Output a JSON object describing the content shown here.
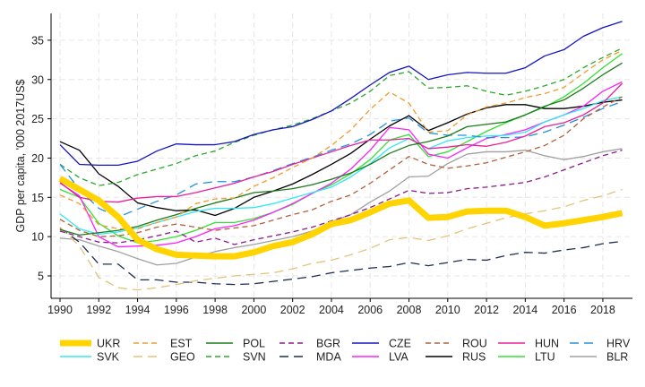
{
  "chart_data": {
    "type": "line",
    "title": "",
    "xlabel": "",
    "ylabel": "GDP per capita, '000 2017US$",
    "xlim": [
      1989.9,
      2019.3
    ],
    "ylim": [
      2.15,
      38.4
    ],
    "x_ticks": [
      1990,
      1992,
      1994,
      1996,
      1998,
      2000,
      2002,
      2004,
      2006,
      2008,
      2010,
      2012,
      2014,
      2016,
      2018
    ],
    "y_ticks": [
      5,
      10,
      15,
      20,
      25,
      30,
      35
    ],
    "grid": true,
    "legend_position": "bottom",
    "x": [
      1990,
      1991,
      1992,
      1993,
      1994,
      1995,
      1996,
      1997,
      1998,
      1999,
      2000,
      2001,
      2002,
      2003,
      2004,
      2005,
      2006,
      2007,
      2008,
      2009,
      2010,
      2011,
      2012,
      2013,
      2014,
      2015,
      2016,
      2017,
      2018,
      2019
    ],
    "series": [
      {
        "name": "UKR",
        "color": "#ffd400",
        "style": "thick",
        "values": [
          17.4,
          16.0,
          14.6,
          12.5,
          9.6,
          8.4,
          7.7,
          7.6,
          7.5,
          7.5,
          8.0,
          8.8,
          9.3,
          10.3,
          11.6,
          12.1,
          13.1,
          14.2,
          14.6,
          12.4,
          12.5,
          13.2,
          13.3,
          13.3,
          12.5,
          11.4,
          11.7,
          12.1,
          12.5,
          13.0
        ]
      },
      {
        "name": "EST",
        "color": "#f39a2c",
        "style": "dash",
        "values": [
          15.3,
          14.2,
          11.5,
          11.0,
          11.0,
          11.8,
          12.5,
          14.2,
          14.8,
          14.9,
          16.4,
          17.5,
          18.8,
          20.0,
          21.6,
          23.6,
          26.2,
          28.4,
          27.0,
          23.3,
          23.5,
          25.5,
          26.5,
          27.0,
          27.7,
          28.2,
          29.0,
          30.8,
          32.5,
          33.7
        ]
      },
      {
        "name": "POL",
        "color": "#1b7a1b",
        "style": "solid",
        "values": [
          10.9,
          10.2,
          10.5,
          10.8,
          11.3,
          12.1,
          12.8,
          13.6,
          14.3,
          14.9,
          15.6,
          15.8,
          16.1,
          16.6,
          17.3,
          18.1,
          19.2,
          20.6,
          21.6,
          22.1,
          22.8,
          24.0,
          24.3,
          24.6,
          25.5,
          26.6,
          27.4,
          28.9,
          30.6,
          32.1
        ]
      },
      {
        "name": "BGR",
        "color": "#8b1a8b",
        "style": "dash",
        "values": [
          10.7,
          10.0,
          9.3,
          9.2,
          9.6,
          10.1,
          10.7,
          9.3,
          9.8,
          9.0,
          9.6,
          10.1,
          10.6,
          11.2,
          12.0,
          12.8,
          13.7,
          14.8,
          15.9,
          15.5,
          15.6,
          16.1,
          16.3,
          16.6,
          16.9,
          17.6,
          18.5,
          19.4,
          20.3,
          21.0
        ]
      },
      {
        "name": "CZE",
        "color": "#1414c0",
        "style": "solid",
        "values": [
          21.7,
          19.2,
          19.1,
          19.1,
          19.6,
          20.9,
          21.8,
          21.7,
          21.7,
          22.1,
          23.0,
          23.6,
          24.0,
          24.9,
          26.0,
          27.6,
          29.3,
          30.9,
          31.7,
          30.0,
          30.6,
          30.9,
          30.8,
          30.8,
          31.5,
          33.0,
          33.8,
          35.5,
          36.6,
          37.4
        ]
      },
      {
        "name": "ROU",
        "color": "#b0603a",
        "style": "dash",
        "values": [
          12.2,
          10.8,
          10.0,
          10.1,
          10.5,
          11.2,
          11.6,
          11.2,
          10.8,
          11.1,
          11.4,
          12.1,
          12.8,
          13.4,
          14.5,
          15.3,
          16.8,
          18.5,
          20.2,
          19.2,
          18.7,
          19.0,
          19.4,
          20.1,
          20.8,
          21.6,
          22.9,
          25.0,
          26.5,
          27.8
        ]
      },
      {
        "name": "HUN",
        "color": "#e8209a",
        "style": "solid",
        "values": [
          16.9,
          15.0,
          14.5,
          14.4,
          14.9,
          15.1,
          15.1,
          15.6,
          16.2,
          16.8,
          17.6,
          18.3,
          19.2,
          20.0,
          20.8,
          21.6,
          22.3,
          22.3,
          22.5,
          21.2,
          21.4,
          21.7,
          21.5,
          22.0,
          22.8,
          24.0,
          24.5,
          25.5,
          27.0,
          29.5
        ]
      },
      {
        "name": "HRV",
        "color": "#2390e0",
        "style": "longdash",
        "values": [
          19.2,
          16.0,
          13.6,
          12.5,
          13.5,
          14.5,
          15.3,
          16.7,
          17.0,
          17.0,
          17.6,
          18.4,
          19.3,
          20.1,
          21.0,
          21.8,
          23.0,
          24.7,
          25.1,
          23.2,
          22.9,
          22.9,
          22.6,
          22.6,
          22.7,
          23.3,
          24.2,
          25.2,
          26.3,
          27.2
        ]
      },
      {
        "name": "SVK",
        "color": "#30e8f2",
        "style": "solid",
        "values": [
          12.9,
          11.0,
          10.3,
          10.6,
          11.1,
          11.8,
          12.5,
          13.2,
          13.6,
          13.6,
          13.7,
          14.2,
          14.9,
          15.6,
          16.3,
          17.6,
          19.3,
          21.3,
          22.5,
          21.2,
          22.2,
          22.6,
          22.8,
          22.9,
          23.3,
          24.6,
          25.5,
          26.3,
          27.3,
          27.8
        ]
      },
      {
        "name": "GEO",
        "color": "#e2c47a",
        "style": "longdash",
        "values": [
          11.2,
          8.8,
          4.8,
          3.5,
          3.2,
          3.5,
          3.9,
          4.4,
          4.7,
          5.0,
          5.2,
          5.4,
          5.9,
          6.6,
          7.0,
          7.7,
          8.5,
          9.6,
          9.9,
          9.5,
          10.1,
          11.0,
          11.7,
          12.4,
          12.9,
          13.3,
          13.8,
          14.6,
          15.2,
          16.0
        ]
      },
      {
        "name": "SVN",
        "color": "#2aa82a",
        "style": "dash",
        "values": [
          19.2,
          17.5,
          16.5,
          16.9,
          17.9,
          18.6,
          19.3,
          20.3,
          20.9,
          22.0,
          22.9,
          23.6,
          24.2,
          25.0,
          26.0,
          27.0,
          28.5,
          30.5,
          31.0,
          28.9,
          29.0,
          29.2,
          28.5,
          28.0,
          28.5,
          29.2,
          30.0,
          31.5,
          32.8,
          34.0
        ]
      },
      {
        "name": "MDA",
        "color": "#1e2d50",
        "style": "longdash",
        "values": [
          11.1,
          9.3,
          6.5,
          6.5,
          4.5,
          4.5,
          4.2,
          4.2,
          4.0,
          3.9,
          4.0,
          4.3,
          4.6,
          4.9,
          5.4,
          5.7,
          6.0,
          6.2,
          6.7,
          6.3,
          6.7,
          7.1,
          7.0,
          7.6,
          8.0,
          7.9,
          8.3,
          8.6,
          9.1,
          9.4
        ]
      },
      {
        "name": "LVA",
        "color": "#ff20ff",
        "style": "solid",
        "values": [
          16.8,
          15.2,
          10.0,
          8.7,
          8.8,
          8.9,
          9.2,
          10.0,
          11.0,
          11.4,
          12.1,
          13.1,
          14.2,
          15.5,
          16.8,
          18.6,
          21.0,
          23.9,
          23.6,
          20.5,
          20.0,
          21.3,
          22.5,
          23.0,
          23.6,
          24.6,
          25.5,
          26.6,
          28.5,
          29.7
        ]
      },
      {
        "name": "RUS",
        "color": "#000000",
        "style": "solid",
        "values": [
          22.1,
          21.0,
          18.0,
          16.4,
          14.3,
          13.7,
          13.3,
          13.4,
          12.7,
          13.6,
          15.0,
          15.8,
          16.7,
          17.9,
          19.2,
          20.6,
          22.4,
          24.1,
          25.4,
          23.5,
          24.5,
          25.6,
          26.4,
          26.8,
          26.8,
          26.3,
          26.3,
          26.6,
          27.1,
          27.4
        ]
      },
      {
        "name": "LTU",
        "color": "#33e033",
        "style": "solid",
        "values": [
          16.0,
          15.0,
          11.7,
          10.1,
          9.2,
          9.5,
          10.0,
          10.8,
          11.8,
          11.8,
          12.3,
          13.1,
          14.1,
          15.5,
          16.6,
          18.0,
          19.8,
          22.3,
          23.0,
          20.2,
          20.8,
          22.1,
          23.4,
          24.5,
          25.5,
          26.5,
          27.8,
          29.5,
          31.5,
          33.3
        ]
      },
      {
        "name": "BLR",
        "color": "#a0a0a0",
        "style": "solid",
        "values": [
          9.8,
          9.6,
          8.8,
          8.1,
          7.2,
          6.4,
          6.6,
          7.4,
          8.1,
          8.6,
          9.0,
          9.5,
          10.0,
          10.7,
          11.9,
          12.8,
          14.4,
          15.8,
          17.6,
          17.7,
          19.3,
          20.5,
          20.8,
          20.8,
          21.0,
          20.3,
          19.8,
          20.2,
          20.8,
          21.2
        ]
      }
    ]
  }
}
